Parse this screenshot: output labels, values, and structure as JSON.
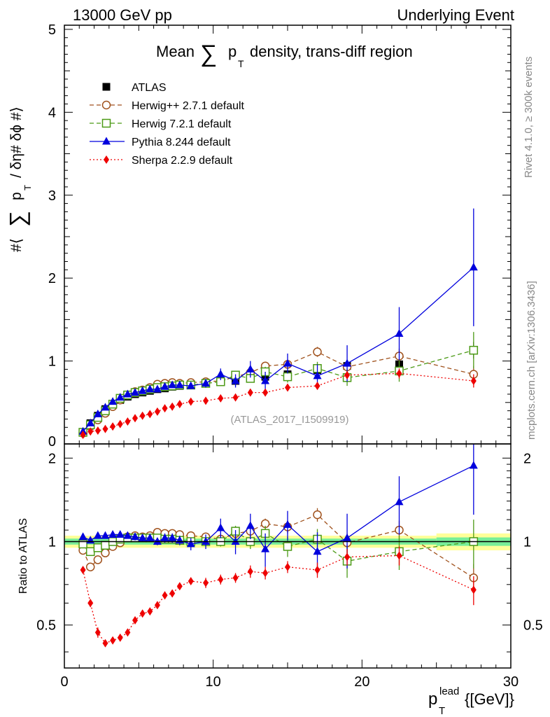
{
  "header": {
    "left": "13000 GeV pp",
    "right": "Underlying Event"
  },
  "title": {
    "prefix": "Mean",
    "sum": "∑",
    "p": "p",
    "sub": "T",
    "suffix": "density, trans-diff region"
  },
  "ylabel_main": {
    "hash_open": "#⟨",
    "sum": "∑",
    "p": "p",
    "sub": "T",
    "rest": "/ δη# δϕ #⟩"
  },
  "ylabel_ratio": "Ratio to ATLAS",
  "xlabel": {
    "p": "p",
    "sub": "T",
    "sup": "lead",
    "unit": "{[GeV]}"
  },
  "side_text": {
    "rivet": "Rivet 4.1.0, ≥ 300k events",
    "mcplots": "mcplots.cern.ch [arXiv:1306.3436]"
  },
  "watermark": "(ATLAS_2017_I1509919)",
  "colors": {
    "atlas": "#000000",
    "herwigpp": "#a0521d",
    "herwig7": "#4c9a16",
    "pythia": "#0000dd",
    "sherpa": "#ee0000",
    "band_outer": "#ffff99",
    "band_inner": "#77ee99"
  },
  "chart_data": [
    {
      "type": "scatter",
      "panel": "main",
      "title": "Mean Σ pT density, trans-diff region",
      "xlabel": "pT lead [GeV]",
      "ylabel": "#⟨Σ pT / δη δϕ⟩",
      "xlim": [
        0,
        30
      ],
      "ylim": [
        0,
        5.05
      ],
      "x_ticks": [
        0,
        10,
        20,
        30
      ],
      "y_ticks": [
        1,
        2,
        3,
        4,
        5
      ],
      "legend_position": "top-left",
      "legend": [
        "ATLAS",
        "Herwig++ 2.7.1 default",
        "Herwig 7.2.1 default",
        "Pythia 8.244 default",
        "Sherpa 2.2.9 default"
      ],
      "x": [
        1.25,
        1.75,
        2.25,
        2.75,
        3.25,
        3.75,
        4.25,
        4.75,
        5.25,
        5.75,
        6.25,
        6.75,
        7.25,
        7.75,
        8.5,
        9.5,
        10.5,
        11.5,
        12.5,
        13.5,
        15.0,
        17.0,
        19.0,
        22.5,
        27.5
      ],
      "series": [
        {
          "name": "ATLAS",
          "key": "atlas",
          "marker": "square-filled",
          "line": "none",
          "values": [
            0.14,
            0.25,
            0.34,
            0.42,
            0.48,
            0.53,
            0.57,
            0.6,
            0.62,
            0.64,
            0.66,
            0.67,
            0.69,
            0.7,
            0.71,
            0.73,
            0.75,
            0.76,
            0.79,
            0.81,
            0.84,
            0.89,
            0.94,
            0.96,
            1.13
          ],
          "errors": [
            0.01,
            0.01,
            0.01,
            0.01,
            0.01,
            0.01,
            0.01,
            0.01,
            0.01,
            0.01,
            0.01,
            0.01,
            0.01,
            0.01,
            0.01,
            0.02,
            0.02,
            0.02,
            0.03,
            0.03,
            0.04,
            0.05,
            0.06,
            0.07,
            0.1
          ]
        },
        {
          "name": "Herwig++ 2.7.1 default",
          "key": "herwigpp",
          "marker": "circle-open",
          "line": "dashed",
          "values": [
            0.13,
            0.21,
            0.29,
            0.37,
            0.45,
            0.53,
            0.59,
            0.63,
            0.65,
            0.68,
            0.72,
            0.73,
            0.74,
            0.73,
            0.74,
            0.75,
            0.76,
            0.81,
            0.86,
            0.94,
            0.96,
            1.11,
            0.93,
            1.06,
            0.84
          ],
          "errors": [
            0.01,
            0.01,
            0.01,
            0.01,
            0.01,
            0.01,
            0.01,
            0.01,
            0.01,
            0.01,
            0.01,
            0.01,
            0.01,
            0.01,
            0.02,
            0.02,
            0.03,
            0.03,
            0.04,
            0.04,
            0.05,
            0.06,
            0.07,
            0.09,
            0.1
          ]
        },
        {
          "name": "Herwig 7.2.1 default",
          "key": "herwig7",
          "marker": "square-open",
          "line": "dashed",
          "values": [
            0.14,
            0.23,
            0.32,
            0.4,
            0.48,
            0.55,
            0.59,
            0.62,
            0.64,
            0.66,
            0.68,
            0.69,
            0.7,
            0.71,
            0.71,
            0.73,
            0.75,
            0.83,
            0.79,
            0.87,
            0.81,
            0.91,
            0.8,
            0.88,
            1.13
          ],
          "errors": [
            0.01,
            0.01,
            0.01,
            0.01,
            0.01,
            0.01,
            0.01,
            0.01,
            0.01,
            0.01,
            0.01,
            0.01,
            0.01,
            0.01,
            0.02,
            0.02,
            0.03,
            0.04,
            0.05,
            0.06,
            0.07,
            0.08,
            0.1,
            0.13,
            0.22
          ]
        },
        {
          "name": "Pythia 8.244 default",
          "key": "pythia",
          "marker": "triangle-filled",
          "line": "solid",
          "values": [
            0.15,
            0.25,
            0.36,
            0.44,
            0.51,
            0.56,
            0.6,
            0.62,
            0.64,
            0.66,
            0.66,
            0.69,
            0.71,
            0.71,
            0.7,
            0.73,
            0.84,
            0.76,
            0.9,
            0.76,
            0.97,
            0.82,
            0.97,
            1.33,
            2.13
          ],
          "errors": [
            0.01,
            0.01,
            0.01,
            0.01,
            0.01,
            0.01,
            0.01,
            0.02,
            0.02,
            0.02,
            0.02,
            0.03,
            0.03,
            0.03,
            0.04,
            0.05,
            0.07,
            0.08,
            0.1,
            0.11,
            0.12,
            0.14,
            0.22,
            0.32,
            0.71
          ]
        },
        {
          "name": "Sherpa 2.2.9 default",
          "key": "sherpa",
          "marker": "diamond-filled",
          "line": "dotted",
          "values": [
            0.11,
            0.15,
            0.16,
            0.18,
            0.21,
            0.24,
            0.27,
            0.31,
            0.34,
            0.36,
            0.39,
            0.43,
            0.45,
            0.48,
            0.51,
            0.52,
            0.55,
            0.56,
            0.62,
            0.62,
            0.68,
            0.7,
            0.83,
            0.85,
            0.76
          ],
          "errors": [
            0.01,
            0.01,
            0.01,
            0.01,
            0.01,
            0.01,
            0.01,
            0.01,
            0.01,
            0.01,
            0.01,
            0.01,
            0.01,
            0.01,
            0.01,
            0.02,
            0.02,
            0.02,
            0.03,
            0.03,
            0.03,
            0.04,
            0.05,
            0.06,
            0.08
          ]
        }
      ]
    },
    {
      "type": "scatter",
      "panel": "ratio",
      "ylabel": "Ratio to ATLAS",
      "xlim": [
        0,
        30
      ],
      "ylim": [
        0.35,
        2.25
      ],
      "y_ticks": [
        0.5,
        1,
        2
      ],
      "reference_line": 1,
      "band_bins": [
        [
          0,
          25
        ],
        [
          25,
          30
        ]
      ],
      "band_outer": [
        0.05,
        0.07
      ],
      "band_inner": [
        0.025,
        0.035
      ],
      "x": [
        1.25,
        1.75,
        2.25,
        2.75,
        3.25,
        3.75,
        4.25,
        4.75,
        5.25,
        5.75,
        6.25,
        6.75,
        7.25,
        7.75,
        8.5,
        9.5,
        10.5,
        11.5,
        12.5,
        13.5,
        15.0,
        17.0,
        19.0,
        22.5,
        27.5
      ],
      "series": [
        {
          "name": "Herwig++ 2.7.1 default",
          "key": "herwigpp",
          "marker": "circle-open",
          "line": "dashed",
          "values": [
            0.93,
            0.81,
            0.86,
            0.91,
            0.96,
            0.99,
            1.04,
            1.05,
            1.04,
            1.05,
            1.08,
            1.07,
            1.07,
            1.06,
            1.05,
            1.04,
            1.02,
            1.07,
            1.09,
            1.16,
            1.13,
            1.25,
            0.99,
            1.1,
            0.74
          ],
          "errors": [
            0.02,
            0.02,
            0.02,
            0.02,
            0.02,
            0.02,
            0.02,
            0.02,
            0.02,
            0.02,
            0.02,
            0.02,
            0.02,
            0.02,
            0.03,
            0.03,
            0.04,
            0.04,
            0.05,
            0.05,
            0.06,
            0.07,
            0.08,
            0.09,
            0.09
          ]
        },
        {
          "name": "Herwig 7.2.1 default",
          "key": "herwig7",
          "marker": "square-open",
          "line": "dashed",
          "values": [
            0.98,
            0.92,
            0.95,
            0.97,
            1.0,
            1.02,
            1.03,
            1.03,
            1.03,
            1.03,
            1.03,
            1.02,
            1.02,
            1.01,
            1.0,
            1.0,
            1.0,
            1.09,
            1.0,
            1.07,
            0.96,
            1.02,
            0.85,
            0.92,
            1.0
          ],
          "errors": [
            0.02,
            0.02,
            0.02,
            0.02,
            0.02,
            0.02,
            0.02,
            0.02,
            0.02,
            0.02,
            0.02,
            0.02,
            0.02,
            0.02,
            0.03,
            0.03,
            0.04,
            0.05,
            0.06,
            0.07,
            0.08,
            0.09,
            0.11,
            0.13,
            0.2
          ]
        },
        {
          "name": "Pythia 8.244 default",
          "key": "pythia",
          "marker": "triangle-filled",
          "line": "solid",
          "values": [
            1.04,
            1.01,
            1.05,
            1.05,
            1.06,
            1.06,
            1.05,
            1.04,
            1.03,
            1.03,
            1.0,
            1.03,
            1.03,
            1.01,
            0.98,
            1.0,
            1.12,
            1.0,
            1.14,
            0.94,
            1.15,
            0.92,
            1.03,
            1.39,
            1.88
          ],
          "errors": [
            0.02,
            0.02,
            0.02,
            0.02,
            0.02,
            0.02,
            0.02,
            0.03,
            0.03,
            0.03,
            0.03,
            0.04,
            0.04,
            0.04,
            0.05,
            0.06,
            0.09,
            0.1,
            0.12,
            0.13,
            0.14,
            0.16,
            0.23,
            0.33,
            0.63
          ]
        },
        {
          "name": "Sherpa 2.2.9 default",
          "key": "sherpa",
          "marker": "diamond-filled",
          "line": "dotted",
          "values": [
            0.79,
            0.6,
            0.47,
            0.43,
            0.44,
            0.45,
            0.47,
            0.52,
            0.55,
            0.56,
            0.59,
            0.64,
            0.65,
            0.69,
            0.72,
            0.71,
            0.73,
            0.74,
            0.78,
            0.77,
            0.81,
            0.79,
            0.88,
            0.89,
            0.67
          ],
          "errors": [
            0.02,
            0.02,
            0.02,
            0.01,
            0.01,
            0.01,
            0.01,
            0.01,
            0.01,
            0.01,
            0.01,
            0.02,
            0.02,
            0.02,
            0.02,
            0.03,
            0.03,
            0.03,
            0.04,
            0.04,
            0.04,
            0.05,
            0.06,
            0.07,
            0.08
          ]
        }
      ]
    }
  ]
}
